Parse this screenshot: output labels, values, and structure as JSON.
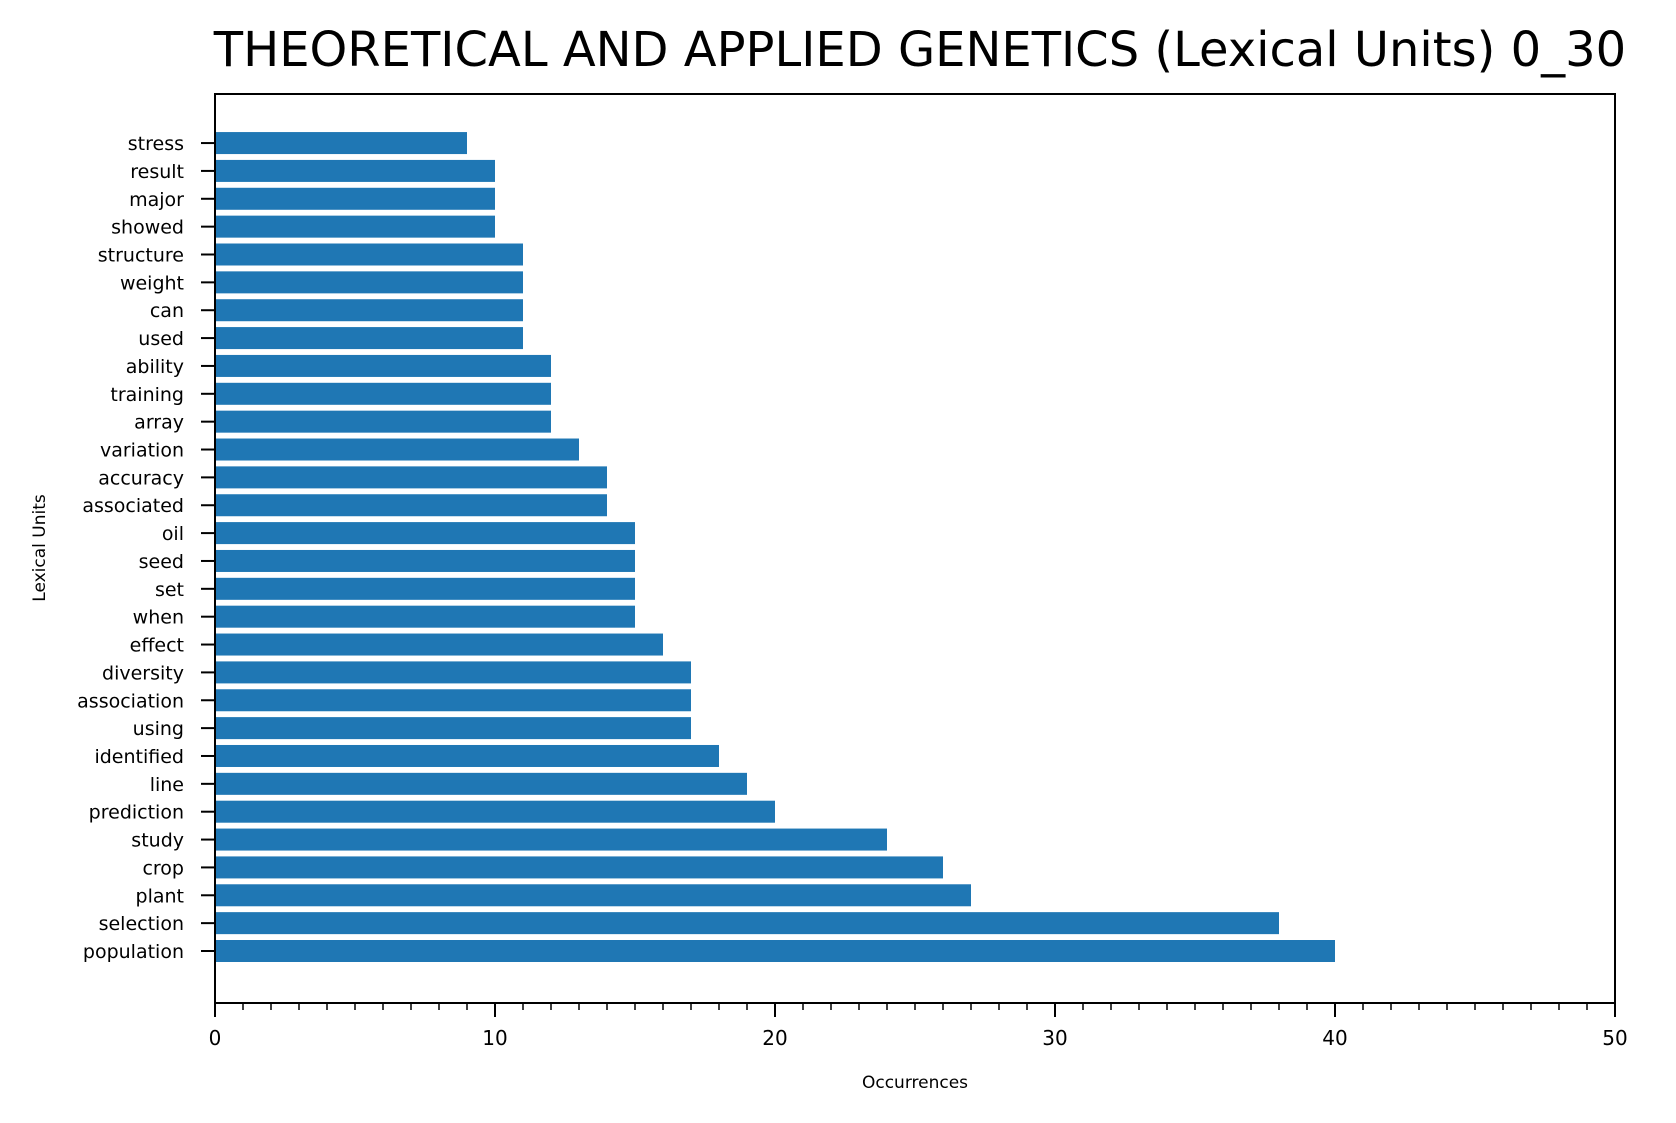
{
  "chart_data": {
    "type": "bar",
    "orientation": "horizontal",
    "title": "THEORETICAL AND APPLIED GENETICS (Lexical Units) 0_30",
    "xlabel": "Occurrences",
    "ylabel": "Lexical Units",
    "xlim": [
      0,
      50
    ],
    "xticks": [
      "0",
      "10",
      "20",
      "30",
      "40",
      "50"
    ],
    "grid": false,
    "bar_color": "#1f77b4",
    "categories": [
      "population",
      "selection",
      "plant",
      "crop",
      "study",
      "prediction",
      "line",
      "identified",
      "using",
      "association",
      "diversity",
      "effect",
      "when",
      "set",
      "seed",
      "oil",
      "associated",
      "accuracy",
      "variation",
      "array",
      "training",
      "ability",
      "used",
      "can",
      "weight",
      "structure",
      "showed",
      "major",
      "result",
      "stress"
    ],
    "values": [
      40,
      38,
      27,
      26,
      24,
      20,
      19,
      18,
      17,
      17,
      17,
      16,
      15,
      15,
      15,
      15,
      14,
      14,
      13,
      12,
      12,
      12,
      11,
      11,
      11,
      11,
      10,
      10,
      10,
      9
    ]
  }
}
